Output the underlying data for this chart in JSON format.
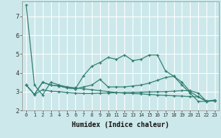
{
  "xlabel": "Humidex (Indice chaleur)",
  "bg_color": "#cce8ea",
  "grid_color": "#f0f0f0",
  "line_color": "#2e7d6e",
  "xlim": [
    -0.5,
    23.5
  ],
  "ylim": [
    2,
    7.8
  ],
  "yticks": [
    2,
    3,
    4,
    5,
    6,
    7
  ],
  "xticks": [
    0,
    1,
    2,
    3,
    4,
    5,
    6,
    7,
    8,
    9,
    10,
    11,
    12,
    13,
    14,
    15,
    16,
    17,
    18,
    19,
    20,
    21,
    22,
    23
  ],
  "series": [
    [
      7.6,
      3.35,
      2.82,
      3.5,
      3.35,
      3.25,
      3.2,
      3.15,
      3.1,
      3.05,
      3.0,
      2.95,
      2.92,
      2.9,
      2.88,
      2.85,
      2.82,
      2.8,
      2.78,
      2.76,
      2.74,
      2.72,
      2.5,
      2.55
    ],
    [
      3.35,
      2.85,
      3.5,
      3.35,
      3.3,
      3.2,
      3.15,
      3.85,
      4.35,
      4.55,
      4.82,
      4.72,
      4.95,
      4.65,
      4.72,
      4.95,
      4.95,
      4.1,
      3.82,
      3.35,
      2.92,
      2.48,
      2.48,
      2.52
    ],
    [
      3.35,
      2.85,
      3.5,
      3.35,
      3.3,
      3.2,
      3.15,
      3.25,
      3.35,
      3.65,
      3.25,
      3.25,
      3.25,
      3.3,
      3.35,
      3.45,
      3.6,
      3.75,
      3.82,
      3.5,
      3.0,
      2.72,
      2.48,
      2.52
    ],
    [
      3.35,
      2.85,
      3.1,
      3.02,
      3.0,
      2.95,
      2.92,
      2.9,
      2.9,
      2.92,
      2.93,
      2.94,
      2.95,
      2.96,
      2.97,
      2.98,
      2.99,
      3.0,
      3.02,
      3.05,
      3.05,
      2.92,
      2.48,
      2.52
    ]
  ]
}
